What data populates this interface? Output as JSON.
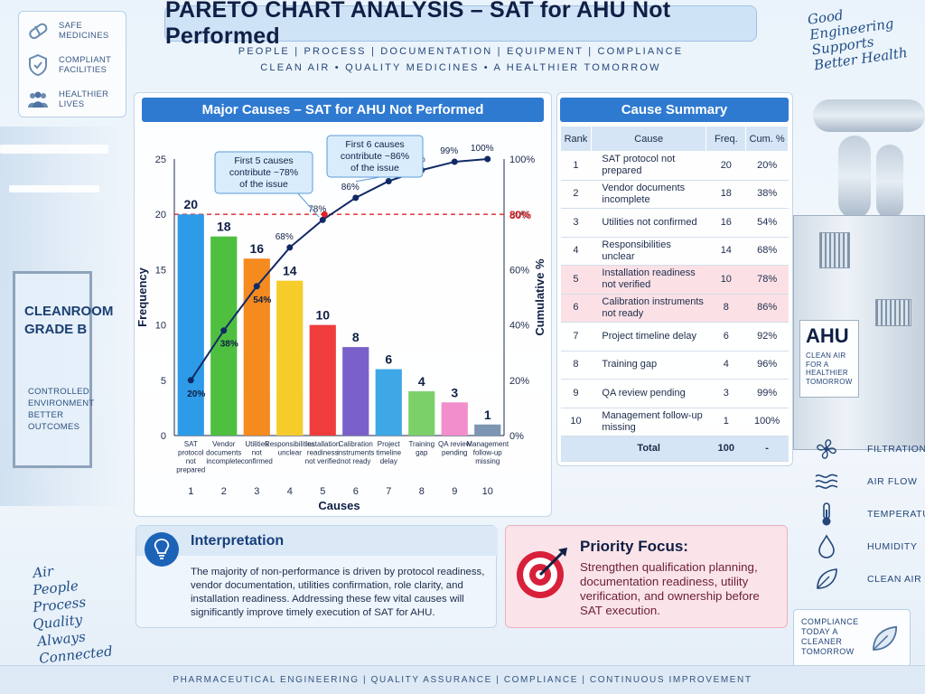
{
  "header": {
    "title": "PARETO CHART ANALYSIS – SAT for AHU Not Performed",
    "subtitle_top": "PEOPLE   |   PROCESS   |   DOCUMENTATION   |   EQUIPMENT   |   COMPLIANCE",
    "subtitle_bottom": "CLEAN AIR  •  QUALITY MEDICINES  •  A HEALTHIER TOMORROW"
  },
  "badges": [
    {
      "icon": "pill-icon",
      "label": "SAFE\nMEDICINES"
    },
    {
      "icon": "shield-check-icon",
      "label": "COMPLIANT\nFACILITIES"
    },
    {
      "icon": "people-icon",
      "label": "HEALTHIER\nLIVES"
    }
  ],
  "slogan_right": [
    "Good",
    "Engineering",
    "Supports",
    "Better Health"
  ],
  "slogan_left": [
    "Air",
    "People",
    "Process",
    "Quality",
    "Always Connected"
  ],
  "cleanroom": {
    "title": "CLEANROOM\nGRADE B",
    "text": "CONTROLLED\nENVIRONMENT\nBETTER OUTCOMES"
  },
  "chart_panel": {
    "title": "Major Causes – SAT for AHU Not Performed"
  },
  "chart_data": {
    "type": "bar",
    "title": "Major Causes – SAT for AHU Not Performed",
    "xlabel": "Causes",
    "ylabel": "Frequency",
    "y2label": "Cumulative %",
    "categories": [
      "SAT protocol not prepared",
      "Vendor documents incomplete",
      "Utilities not confirmed",
      "Responsibilities unclear",
      "Installation readiness not verified",
      "Calibration instruments not ready",
      "Project timeline delay",
      "Training gap",
      "QA review pending",
      "Management follow-up missing"
    ],
    "category_lines": [
      [
        "SAT",
        "protocol",
        "not",
        "prepared"
      ],
      [
        "Vendor",
        "documents",
        "incomplete"
      ],
      [
        "Utilities",
        "not",
        "confirmed"
      ],
      [
        "Responsibilities",
        "unclear"
      ],
      [
        "Installation",
        "readiness",
        "not verified"
      ],
      [
        "Calibration",
        "instruments",
        "not ready"
      ],
      [
        "Project",
        "timeline",
        "delay"
      ],
      [
        "Training",
        "gap"
      ],
      [
        "QA review",
        "pending"
      ],
      [
        "Management",
        "follow-up",
        "missing"
      ]
    ],
    "ranks": [
      "1",
      "2",
      "3",
      "4",
      "5",
      "6",
      "7",
      "8",
      "9",
      "10"
    ],
    "values": [
      20,
      18,
      16,
      14,
      10,
      8,
      6,
      4,
      3,
      1
    ],
    "value_labels": [
      "20",
      "18",
      "16",
      "14",
      "10",
      "8",
      "6",
      "4",
      "3",
      "1"
    ],
    "cumulative": [
      20,
      38,
      54,
      68,
      78,
      86,
      92,
      96,
      99,
      100
    ],
    "cumulative_labels": [
      "20%",
      "38%",
      "54%",
      "68%",
      "78%",
      "86%",
      "92%",
      "96%",
      "99%",
      "100%"
    ],
    "bar_colors": [
      "#2e9be8",
      "#4fbf3f",
      "#f58a1f",
      "#f6cc2b",
      "#ef3d3d",
      "#7a61c9",
      "#3ea7e6",
      "#7cd06a",
      "#f28ecb",
      "#7d95b2"
    ],
    "line_color": "#112a66",
    "threshold": 80,
    "threshold_label": "80%",
    "threshold_color": "#e02424",
    "ylim": [
      0,
      25
    ],
    "yticks": [
      "0",
      "5",
      "10",
      "15",
      "20",
      "25"
    ],
    "y2lim": [
      0,
      100
    ],
    "y2ticks": [
      "0%",
      "20%",
      "40%",
      "60%",
      "80%",
      "100%"
    ],
    "annotations": [
      {
        "text": [
          "First 5 causes",
          "contribute ~78%",
          "of the issue"
        ],
        "points_to": 5
      },
      {
        "text": [
          "First 6 causes",
          "contribute ~86%",
          "of the issue"
        ],
        "points_to": 6
      }
    ]
  },
  "summary": {
    "title": "Cause Summary",
    "headers": [
      "Rank",
      "Cause",
      "Freq.",
      "Cum. %"
    ],
    "rows": [
      {
        "rank": "1",
        "cause": "SAT protocol not prepared",
        "freq": "20",
        "cum": "20%",
        "highlight": false
      },
      {
        "rank": "2",
        "cause": "Vendor documents incomplete",
        "freq": "18",
        "cum": "38%",
        "highlight": false
      },
      {
        "rank": "3",
        "cause": "Utilities not confirmed",
        "freq": "16",
        "cum": "54%",
        "highlight": false
      },
      {
        "rank": "4",
        "cause": "Responsibilities unclear",
        "freq": "14",
        "cum": "68%",
        "highlight": false
      },
      {
        "rank": "5",
        "cause": "Installation readiness not verified",
        "freq": "10",
        "cum": "78%",
        "highlight": true
      },
      {
        "rank": "6",
        "cause": "Calibration instruments not ready",
        "freq": "8",
        "cum": "86%",
        "highlight": true
      },
      {
        "rank": "7",
        "cause": "Project timeline delay",
        "freq": "6",
        "cum": "92%",
        "highlight": false
      },
      {
        "rank": "8",
        "cause": "Training gap",
        "freq": "4",
        "cum": "96%",
        "highlight": false
      },
      {
        "rank": "9",
        "cause": "QA review pending",
        "freq": "3",
        "cum": "99%",
        "highlight": false
      },
      {
        "rank": "10",
        "cause": "Management follow-up missing",
        "freq": "1",
        "cum": "100%",
        "highlight": false
      }
    ],
    "total": {
      "label": "Total",
      "freq": "100",
      "cum": "-"
    }
  },
  "interpretation": {
    "title": "Interpretation",
    "text": "The majority of non-performance is driven by protocol readiness, vendor documentation, utilities confirmation, role clarity, and installation readiness. Addressing these few vital causes will significantly improve timely execution of SAT for AHU."
  },
  "priority": {
    "title": "Priority Focus:",
    "text": "Strengthen qualification planning, documentation readiness, utility verification, and ownership before SAT execution."
  },
  "ahu": {
    "title": "AHU",
    "text": "CLEAN AIR FOR A HEALTHIER TOMORROW"
  },
  "right_list": [
    {
      "icon": "fan-icon",
      "label": "FILTRATION"
    },
    {
      "icon": "air-flow-icon",
      "label": "AIR FLOW"
    },
    {
      "icon": "thermometer-icon",
      "label": "TEMPERATURE"
    },
    {
      "icon": "water-drop-icon",
      "label": "HUMIDITY"
    },
    {
      "icon": "leaf-icon",
      "label": "CLEAN AIR"
    }
  ],
  "compliance_box": {
    "text": "COMPLIANCE TODAY A CLEANER TOMORROW",
    "icon": "leaf-icon"
  },
  "footer": "PHARMACEUTICAL ENGINEERING   |   QUALITY ASSURANCE   |   COMPLIANCE   |   CONTINUOUS IMPROVEMENT",
  "colors": {
    "accent": "#2f7ad1",
    "highlight": "#fbe1e6",
    "navy": "#0f1f45"
  }
}
